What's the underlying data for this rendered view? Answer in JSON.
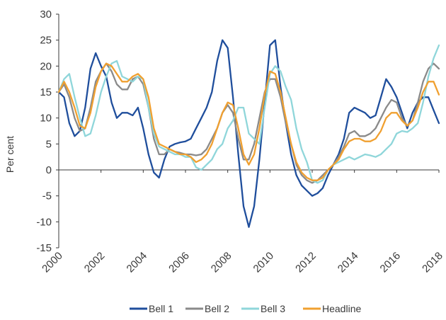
{
  "chart_data": {
    "type": "line",
    "title": "",
    "xlabel": "",
    "ylabel": "Per cent",
    "xlim": [
      2000,
      2018
    ],
    "ylim": [
      -15,
      30
    ],
    "y_ticks": [
      30,
      25,
      20,
      15,
      10,
      5,
      0,
      -5,
      -10,
      -15
    ],
    "x_ticks": [
      "2000",
      "2002",
      "2004",
      "2006",
      "2008",
      "2010",
      "2012",
      "2014",
      "2016",
      "2018"
    ],
    "grid": false,
    "legend_position": "bottom",
    "x": [
      2000.0,
      2000.25,
      2000.5,
      2000.75,
      2001.0,
      2001.25,
      2001.5,
      2001.75,
      2002.0,
      2002.25,
      2002.5,
      2002.75,
      2003.0,
      2003.25,
      2003.5,
      2003.75,
      2004.0,
      2004.25,
      2004.5,
      2004.75,
      2005.0,
      2005.25,
      2005.5,
      2005.75,
      2006.0,
      2006.25,
      2006.5,
      2006.75,
      2007.0,
      2007.25,
      2007.5,
      2007.75,
      2008.0,
      2008.25,
      2008.5,
      2008.75,
      2009.0,
      2009.25,
      2009.5,
      2009.75,
      2010.0,
      2010.25,
      2010.5,
      2010.75,
      2011.0,
      2011.25,
      2011.5,
      2011.75,
      2012.0,
      2012.25,
      2012.5,
      2012.75,
      2013.0,
      2013.25,
      2013.5,
      2013.75,
      2014.0,
      2014.25,
      2014.5,
      2014.75,
      2015.0,
      2015.25,
      2015.5,
      2015.75,
      2016.0,
      2016.25,
      2016.5,
      2016.75,
      2017.0,
      2017.25,
      2017.5,
      2017.75,
      2018.0
    ],
    "series": [
      {
        "name": "Bell 1",
        "color": "#1f4e9c",
        "values": [
          15,
          14,
          9,
          6.5,
          7.5,
          12,
          19.5,
          22.5,
          20,
          18,
          13,
          10,
          11,
          11,
          10.5,
          12,
          8,
          3,
          -0.5,
          -1.5,
          2,
          4.5,
          5,
          5.3,
          5.5,
          6,
          8,
          10,
          12,
          15,
          21,
          25,
          23.5,
          14,
          3,
          -7,
          -11,
          -7,
          2,
          13,
          24,
          25,
          16,
          9,
          3,
          -1,
          -3,
          -4,
          -5,
          -4.5,
          -3.5,
          -1,
          1,
          3,
          6,
          11,
          12,
          11.5,
          11,
          10,
          10.5,
          14,
          17.5,
          16,
          14,
          11,
          8,
          11,
          13,
          14,
          14,
          11.5,
          9
        ]
      },
      {
        "name": "Bell 2",
        "color": "#8a8a8a",
        "values": [
          15,
          16.5,
          14,
          10,
          7.5,
          8,
          12,
          17,
          19,
          20.5,
          19,
          16.5,
          15.5,
          15.5,
          17.5,
          18,
          16.5,
          12,
          6,
          3,
          3,
          4,
          3.5,
          3.3,
          3,
          3,
          2.8,
          3,
          4,
          6,
          8,
          11,
          12.5,
          11,
          6,
          2,
          2,
          5,
          10,
          15,
          17.5,
          17.5,
          14,
          9,
          5,
          1,
          -1,
          -2,
          -2.5,
          -2,
          -1,
          0,
          1,
          2.5,
          4.5,
          7,
          7.5,
          6.5,
          6.5,
          7,
          8,
          10,
          12,
          13.5,
          13,
          10,
          8.5,
          9.5,
          13,
          17,
          19.5,
          20.5,
          19.5
        ]
      },
      {
        "name": "Bell 3",
        "color": "#8fd6da",
        "values": [
          15,
          17.5,
          18.5,
          14,
          10,
          6.5,
          7,
          10.5,
          15,
          18,
          20.5,
          21,
          18,
          17.5,
          17,
          18,
          17.5,
          12,
          7,
          4.5,
          4,
          3.5,
          3,
          3,
          2.5,
          2.5,
          0.5,
          0,
          1,
          2,
          4,
          5,
          8,
          9.5,
          12,
          12,
          7,
          6,
          5,
          12,
          18.5,
          20,
          19,
          16,
          13.5,
          8,
          4,
          1.5,
          -2,
          -2.5,
          -2,
          0,
          1,
          1.5,
          2,
          2.5,
          2,
          2.5,
          3,
          2.8,
          2.5,
          3,
          4,
          5,
          7,
          7.5,
          7.3,
          8,
          9,
          13,
          18,
          21.5,
          24
        ]
      },
      {
        "name": "Headline",
        "color": "#f0a030",
        "values": [
          15,
          17,
          15,
          12,
          8.5,
          8,
          11,
          16,
          19,
          20.5,
          20,
          18.5,
          17,
          17,
          18,
          18.5,
          17.5,
          14,
          8,
          5,
          4.5,
          4,
          3.5,
          3,
          3,
          2.5,
          1.5,
          2,
          3,
          5,
          8,
          11,
          13,
          12.5,
          8,
          3,
          1,
          3,
          8,
          14.5,
          19,
          18.5,
          15,
          10,
          5,
          1.5,
          -0.5,
          -1.5,
          -2,
          -2,
          -1.5,
          0,
          1,
          2,
          4,
          5.5,
          6,
          6,
          5.5,
          5.5,
          6,
          7.5,
          10,
          11,
          11,
          9.5,
          8.5,
          9.5,
          12,
          15,
          17,
          17,
          14.5
        ]
      }
    ]
  }
}
